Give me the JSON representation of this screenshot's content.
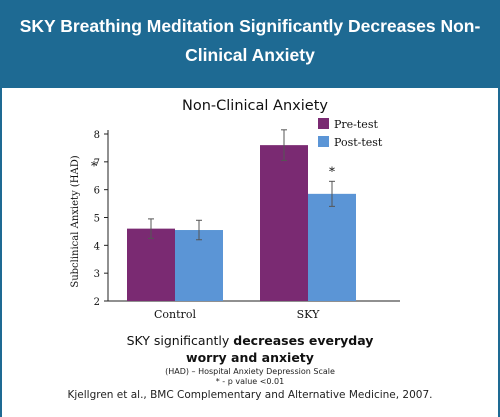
{
  "slide": {
    "title_line1": "SKY Breathing Meditation Significantly Decreases Non-",
    "title_line2": "Clinical Anxiety",
    "caption_plain": "SKY significantly ",
    "caption_bold1": "decreases everyday",
    "caption_bold2": "worry and anxiety",
    "note_had": "(HAD) – Hospital Anxiety Depression Scale",
    "note_p": "* - p value <0.01",
    "citation": "Kjellgren et al., BMC Complementary and Alternative Medicine, 2007.",
    "colors": {
      "header": "#1e6a93",
      "pre": "#7a2a72",
      "post": "#5b95d6"
    }
  },
  "chart_data": {
    "type": "bar",
    "title": "Non-Clinical Anxiety",
    "ylabel": "Subclinical Anxiety (HAD)",
    "xlabel": "",
    "categories": [
      "Control",
      "SKY"
    ],
    "series": [
      {
        "name": "Pre-test",
        "values": [
          4.6,
          7.6
        ],
        "errors": [
          0.35,
          0.55
        ],
        "color": "#7a2a72"
      },
      {
        "name": "Post-test",
        "values": [
          4.55,
          5.85
        ],
        "errors": [
          0.35,
          0.45
        ],
        "color": "#5b95d6"
      }
    ],
    "ylim": [
      2,
      8
    ],
    "yticks": [
      2,
      3,
      4,
      5,
      6,
      7,
      8
    ],
    "significance_marker": "*",
    "significant_bars": [
      [
        0,
        7
      ],
      [
        1,
        1
      ]
    ],
    "legend_position": "top-right",
    "grid": false
  }
}
